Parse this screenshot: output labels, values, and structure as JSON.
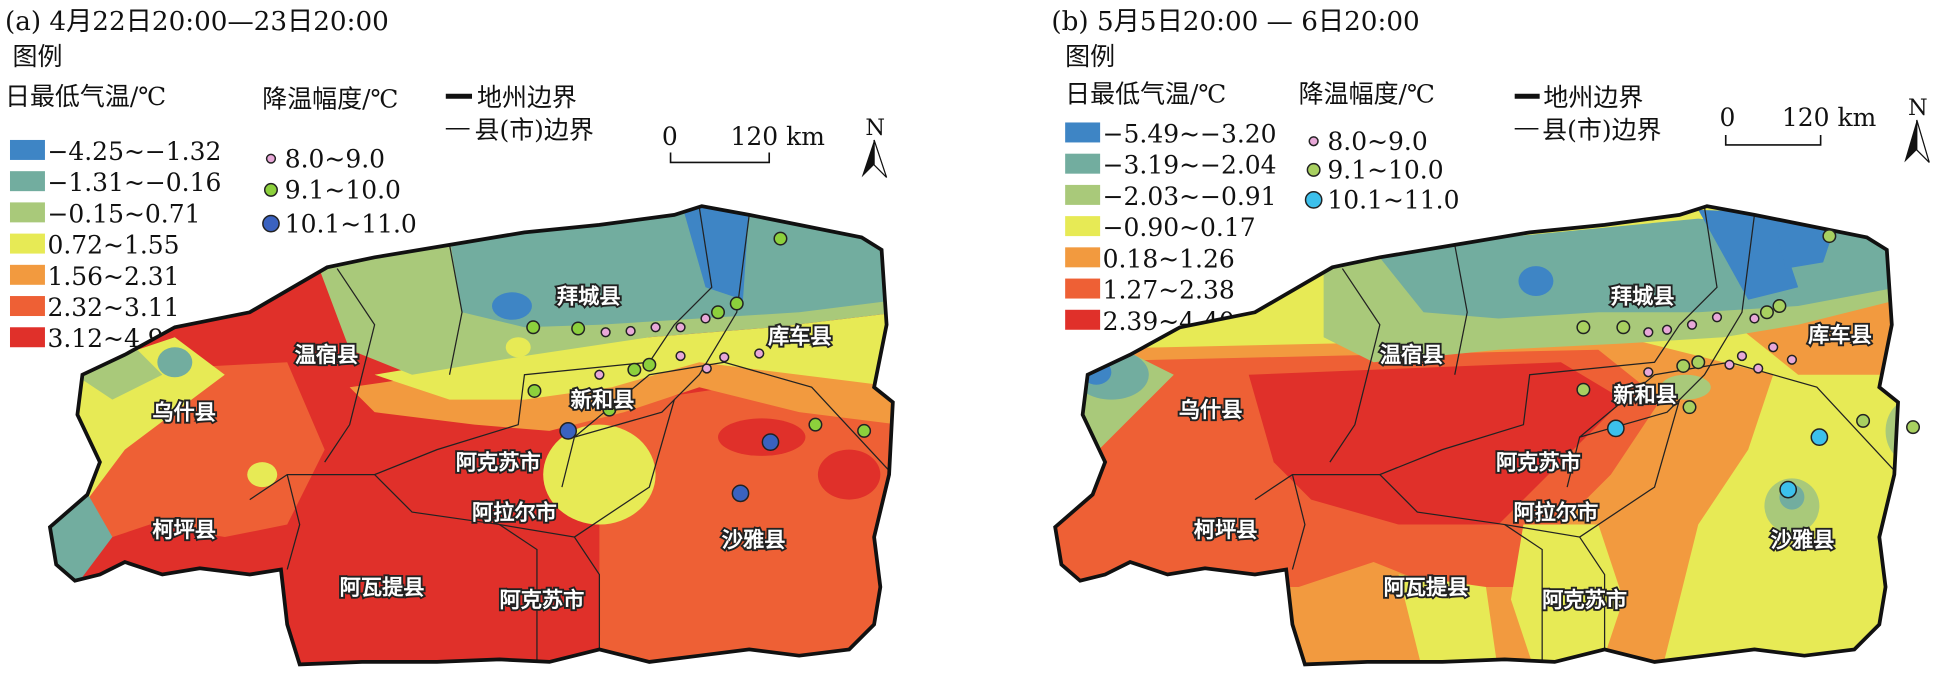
{
  "panels": [
    {
      "title": "(a) 4月22日20:00—23日20:00",
      "legend_heading": "图例",
      "temp_heading": "日最低气温/℃",
      "temp_classes": [
        {
          "label": "−4.25~−1.32",
          "color": "#3e85c5"
        },
        {
          "label": "−1.31~−0.16",
          "color": "#72ad9f"
        },
        {
          "label": "−0.15~0.71",
          "color": "#a9c97a"
        },
        {
          "label": "0.72~1.55",
          "color": "#e7ea55"
        },
        {
          "label": "1.56~2.31",
          "color": "#f29a3f"
        },
        {
          "label": "2.32~3.11",
          "color": "#ee6035"
        },
        {
          "label": "3.12~4.99",
          "color": "#e0302a"
        }
      ],
      "cooling_heading": "降温幅度/℃",
      "cooling_classes": [
        {
          "label": "8.0~9.0",
          "color": "#e8a8d8"
        },
        {
          "label": "9.1~10.0",
          "color": "#8cd03c"
        },
        {
          "label": "10.1~11.0",
          "color": "#3a62c0"
        }
      ],
      "prefecture_boundary": "地州边界",
      "county_boundary": "县(市)边界",
      "scale_start": "0",
      "scale_end": "120 km",
      "north": "N",
      "counties": [
        "拜城县",
        "库车县",
        "温宿县",
        "新和县",
        "乌什县",
        "阿克苏市",
        "阿拉尔市",
        "柯坪县",
        "沙雅县",
        "阿瓦提县",
        "阿克苏市"
      ]
    },
    {
      "title": "(b) 5月5日20:00 — 6日20:00",
      "legend_heading": "图例",
      "temp_heading": "日最低气温/℃",
      "temp_classes": [
        {
          "label": "−5.49~−3.20",
          "color": "#3e85c5"
        },
        {
          "label": "−3.19~−2.04",
          "color": "#72ad9f"
        },
        {
          "label": "−2.03~−0.91",
          "color": "#a9c97a"
        },
        {
          "label": "−0.90~0.17",
          "color": "#e7ea55"
        },
        {
          "label": "0.18~1.26",
          "color": "#f29a3f"
        },
        {
          "label": "1.27~2.38",
          "color": "#ee6035"
        },
        {
          "label": "2.39~4.40",
          "color": "#e0302a"
        }
      ],
      "cooling_heading": "降温幅度/℃",
      "cooling_classes": [
        {
          "label": "8.0~9.0",
          "color": "#e8a8d8"
        },
        {
          "label": "9.1~10.0",
          "color": "#a8d060"
        },
        {
          "label": "10.1~11.0",
          "color": "#3cc0ec"
        }
      ],
      "prefecture_boundary": "地州边界",
      "county_boundary": "县(市)边界",
      "scale_start": "0",
      "scale_end": "120 km",
      "north": "N",
      "counties": [
        "拜城县",
        "库车县",
        "温宿县",
        "新和县",
        "乌什县",
        "阿克苏市",
        "阿拉尔市",
        "柯坪县",
        "沙雅县",
        "阿瓦提县",
        "阿克苏市"
      ]
    }
  ]
}
